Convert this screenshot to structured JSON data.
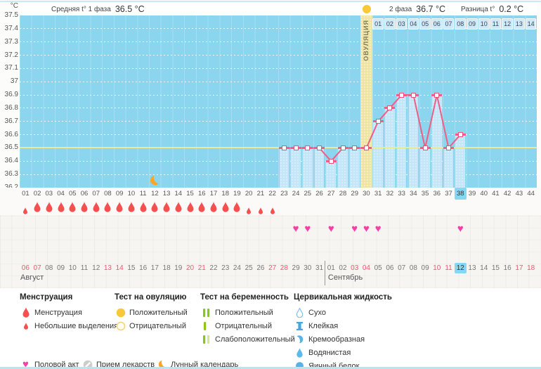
{
  "header": {
    "unit": "°C",
    "phase1_label": "Средняя t° 1 фаза",
    "phase1_value": "36.5 °C",
    "phase2_label": "2 фаза",
    "phase2_value": "36.7 °C",
    "diff_label": "Разница t°",
    "diff_value": "0.2 °C"
  },
  "chart_data": {
    "type": "line",
    "title": "График базальной температуры",
    "ylabel": "°C",
    "ylim": [
      36.2,
      37.5
    ],
    "y_ticks": [
      "37.5",
      "37.4",
      "37.3",
      "37.2",
      "37.1",
      "37",
      "36.9",
      "36.8",
      "36.7",
      "36.6",
      "36.5",
      "36.4",
      "36.3",
      "36.2"
    ],
    "total_days": 44,
    "day_numbers": [
      "01",
      "02",
      "03",
      "04",
      "05",
      "06",
      "07",
      "08",
      "09",
      "10",
      "11",
      "12",
      "13",
      "14",
      "15",
      "16",
      "17",
      "18",
      "19",
      "20",
      "21",
      "22",
      "23",
      "24",
      "25",
      "26",
      "27",
      "28",
      "29",
      "30",
      "31",
      "32",
      "33",
      "34",
      "35",
      "36",
      "37",
      "38",
      "39",
      "40",
      "41",
      "42",
      "43",
      "44"
    ],
    "coverline": 36.5,
    "phase1_average": 36.5,
    "phase2_average": 36.7,
    "difference": 0.2,
    "ovulation_day": 30,
    "ovulation_label": "ОВУЛЯЦИЯ",
    "current_day": 38,
    "temperatures": [
      {
        "day": 23,
        "t": 36.5
      },
      {
        "day": 24,
        "t": 36.5
      },
      {
        "day": 25,
        "t": 36.5
      },
      {
        "day": 26,
        "t": 36.5
      },
      {
        "day": 27,
        "t": 36.4
      },
      {
        "day": 28,
        "t": 36.5
      },
      {
        "day": 29,
        "t": 36.5
      },
      {
        "day": 30,
        "t": 36.5
      },
      {
        "day": 31,
        "t": 36.7
      },
      {
        "day": 32,
        "t": 36.8
      },
      {
        "day": 33,
        "t": 36.9
      },
      {
        "day": 34,
        "t": 36.9
      },
      {
        "day": 35,
        "t": 36.5
      },
      {
        "day": 36,
        "t": 36.9
      },
      {
        "day": 37,
        "t": 36.5
      },
      {
        "day": 38,
        "t": 36.6
      }
    ],
    "post_ovulation_day_numbers": [
      "01",
      "02",
      "03",
      "04",
      "05",
      "06",
      "07",
      "08",
      "09",
      "10",
      "11",
      "12",
      "13",
      "14"
    ],
    "lunar_day": 12,
    "menstruation_large_days": [
      2,
      3,
      4,
      5,
      6,
      7,
      8,
      9,
      10,
      11,
      12,
      13,
      14,
      15,
      16,
      17,
      18,
      19
    ],
    "menstruation_small_days": [
      1,
      20,
      21,
      22
    ],
    "intercourse_days": [
      24,
      25,
      27,
      29,
      30,
      31,
      38
    ]
  },
  "calendar": {
    "dates": [
      "06",
      "07",
      "08",
      "09",
      "10",
      "11",
      "12",
      "13",
      "14",
      "15",
      "16",
      "17",
      "18",
      "19",
      "20",
      "21",
      "22",
      "23",
      "24",
      "25",
      "26",
      "27",
      "28",
      "29",
      "30",
      "31",
      "01",
      "02",
      "03",
      "04",
      "05",
      "06",
      "07",
      "08",
      "09",
      "10",
      "11",
      "12",
      "13",
      "14",
      "15",
      "16",
      "17",
      "18"
    ],
    "red_indices": [
      0,
      1,
      7,
      8,
      14,
      15,
      21,
      22,
      28,
      29,
      35,
      36,
      42,
      43
    ],
    "highlight_index": 37,
    "months": [
      {
        "label": "Август",
        "at_index": 0
      },
      {
        "label": "Сентябрь",
        "at_index": 26
      }
    ]
  },
  "legend": {
    "sections": [
      {
        "title": "Менструация",
        "items": [
          {
            "icon": "menstruation-large-drop-icon",
            "label": "Менструация"
          },
          {
            "icon": "menstruation-small-drop-icon",
            "label": "Небольшие выделения"
          }
        ]
      },
      {
        "title": "Тест на овуляцию",
        "items": [
          {
            "icon": "ovulation-test-positive-icon",
            "label": "Положительный"
          },
          {
            "icon": "ovulation-test-negative-icon",
            "label": "Отрицательный"
          }
        ]
      },
      {
        "title": "Тест на беременность",
        "items": [
          {
            "icon": "pregnancy-test-positive-icon",
            "label": "Положительный"
          },
          {
            "icon": "pregnancy-test-negative-icon",
            "label": "Отрицательный"
          },
          {
            "icon": "pregnancy-test-weak-icon",
            "label": "Слабоположительный"
          }
        ]
      },
      {
        "title": "Цервикальная жидкость",
        "items": [
          {
            "icon": "fluid-dry-icon",
            "label": "Сухо"
          },
          {
            "icon": "fluid-sticky-icon",
            "label": "Клейкая"
          },
          {
            "icon": "fluid-creamy-icon",
            "label": "Кремообразная"
          },
          {
            "icon": "fluid-watery-icon",
            "label": "Водянистая"
          },
          {
            "icon": "fluid-eggwhite-icon",
            "label": "Яичный белок"
          }
        ]
      }
    ],
    "footer_items": [
      {
        "icon": "intercourse-heart-icon",
        "label": "Половой акт"
      },
      {
        "icon": "medication-pill-icon",
        "label": "Прием лекарств"
      },
      {
        "icon": "lunar-moon-icon",
        "label": "Лунный календарь"
      }
    ]
  },
  "colors": {
    "chart_bg": "#8cd5ef",
    "column_fill": "#c3e6f8",
    "ovulation_band": "#efe5a2",
    "temperature_line": "#ee5e85",
    "coverline": "#ebeb96",
    "menstruation": "#f4504f",
    "intercourse": "#f83fa7",
    "ovulation_test": "#f8c838",
    "pregnancy_test": "#8cc41e",
    "pregnancy_test_weak": "#cfe69b",
    "cervical_fluid": "#57b4e8",
    "today_highlight": "#86d7f3",
    "weekend_date": "#f4546e",
    "moon": "#f6a725",
    "pill": "#cdcdcd"
  }
}
